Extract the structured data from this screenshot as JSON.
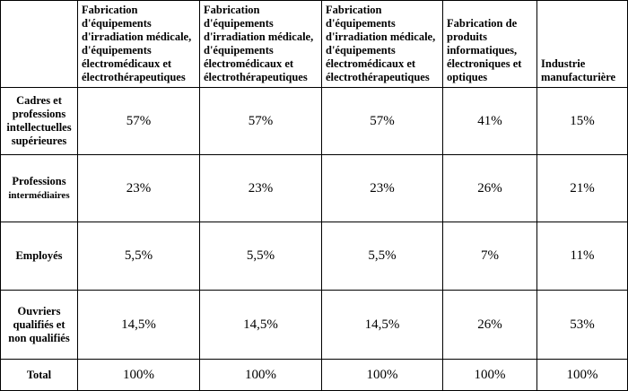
{
  "table": {
    "columns": [
      "Fabrication d'équipements d'irradiation médicale, d'équipements électromédicaux et électrothérapeutiques",
      "Fabrication d'équipements d'irradiation médicale, d'équipements électromédicaux et électrothérapeutiques",
      "Fabrication d'équipements d'irradiation médicale, d'équipements électromédicaux et électrothérapeutiques",
      "Fabrication de produits informatiques, électroniques et optiques",
      "Industrie manufacturière"
    ],
    "rows": [
      {
        "label": "Cadres et professions intellectuelles supérieures",
        "values": [
          "57%",
          "57%",
          "57%",
          "41%",
          "15%"
        ]
      },
      {
        "label_line1": "Professions",
        "label_line2": "intermédiaires",
        "values": [
          "23%",
          "23%",
          "23%",
          "26%",
          "21%"
        ]
      },
      {
        "label": "Employés",
        "values": [
          "5,5%",
          "5,5%",
          "5,5%",
          "7%",
          "11%"
        ]
      },
      {
        "label": "Ouvriers qualifiés et non qualifiés",
        "values": [
          "14,5%",
          "14,5%",
          "14,5%",
          "26%",
          "53%"
        ]
      },
      {
        "label": "Total",
        "values": [
          "100%",
          "100%",
          "100%",
          "100%",
          "100%"
        ]
      }
    ]
  }
}
